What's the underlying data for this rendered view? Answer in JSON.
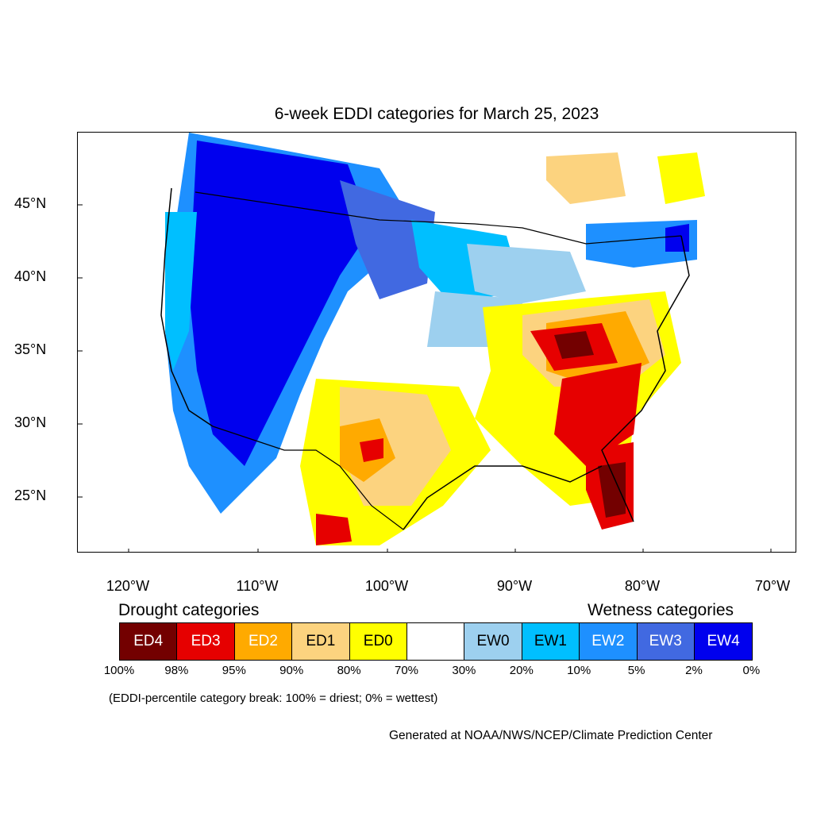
{
  "title": "6-week EDDI categories for March 25, 2023",
  "lat_labels": [
    "45°N",
    "40°N",
    "35°N",
    "30°N",
    "25°N"
  ],
  "lon_labels": [
    "120°W",
    "110°W",
    "100°W",
    "90°W",
    "80°W",
    "70°W"
  ],
  "drought_label": "Drought categories",
  "wetness_label": "Wetness categories",
  "legend": [
    {
      "label": "ED4",
      "color": "#730000",
      "text_color": "#ffffff"
    },
    {
      "label": "ED3",
      "color": "#e60000",
      "text_color": "#ffffff"
    },
    {
      "label": "ED2",
      "color": "#ffaa00",
      "text_color": "#ffffff"
    },
    {
      "label": "ED1",
      "color": "#fcd37f",
      "text_color": "#000000"
    },
    {
      "label": "ED0",
      "color": "#ffff00",
      "text_color": "#000000"
    },
    {
      "label": "",
      "color": "#ffffff",
      "text_color": "#000000"
    },
    {
      "label": "EW0",
      "color": "#9dd0ef",
      "text_color": "#000000"
    },
    {
      "label": "EW1",
      "color": "#00bfff",
      "text_color": "#000000"
    },
    {
      "label": "EW2",
      "color": "#1e90ff",
      "text_color": "#ffffff"
    },
    {
      "label": "EW3",
      "color": "#4169e1",
      "text_color": "#ffffff"
    },
    {
      "label": "EW4",
      "color": "#0000ee",
      "text_color": "#ffffff"
    }
  ],
  "percent_breaks": [
    "100%",
    "98%",
    "95%",
    "90%",
    "80%",
    "70%",
    "30%",
    "20%",
    "10%",
    "5%",
    "2%",
    "0%"
  ],
  "note": "(EDDI-percentile category break: 100% = driest; 0% = wettest)",
  "credit": "Generated at NOAA/NWS/NCEP/Climate Prediction Center"
}
